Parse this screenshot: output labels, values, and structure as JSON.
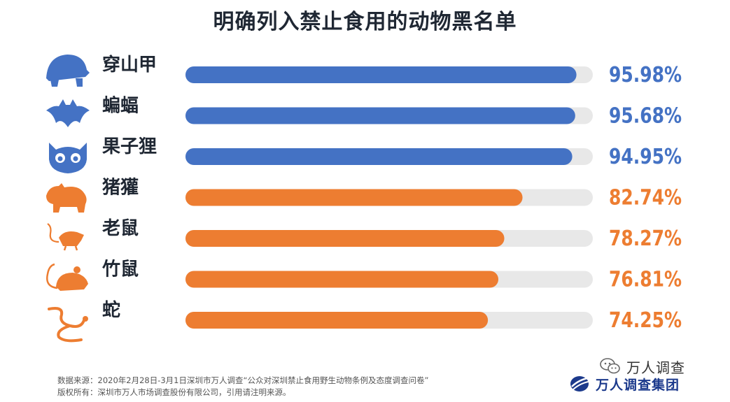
{
  "title": "明确列入禁止食用的动物黑名单",
  "chart_data": {
    "type": "bar",
    "orientation": "horizontal",
    "title": "明确列入禁止食用的动物黑名单",
    "categories": [
      "穿山甲",
      "蝙蝠",
      "果子狸",
      "猪獾",
      "老鼠",
      "竹鼠",
      "蛇"
    ],
    "values": [
      95.98,
      95.68,
      94.95,
      82.74,
      78.27,
      76.81,
      74.25
    ],
    "value_labels": [
      "95.98%",
      "95.68%",
      "94.95%",
      "82.74%",
      "78.27%",
      "76.81%",
      "74.25%"
    ],
    "icons": [
      "pangolin-icon",
      "bat-icon",
      "civet-icon",
      "badger-icon",
      "rat-icon",
      "bamboo-rat-icon",
      "snake-icon"
    ],
    "colors": [
      "#4472c4",
      "#4472c4",
      "#4472c4",
      "#ed7d31",
      "#ed7d31",
      "#ed7d31",
      "#ed7d31"
    ],
    "track_color": "#e8e8e8",
    "xlim": [
      0,
      100
    ],
    "grid": false,
    "legend": "none"
  },
  "footer": {
    "source": "数据来源：2020年2月28日-3月1日深圳市万人调查“公众对深圳禁止食用野生动物条例及态度调查问卷”",
    "copyright": "版权所有：深圳市万人市场调查股份有限公司，引用请注明来源。"
  },
  "brand": {
    "logo_text": "万人调查集团",
    "wechat_text": "万人调查"
  }
}
